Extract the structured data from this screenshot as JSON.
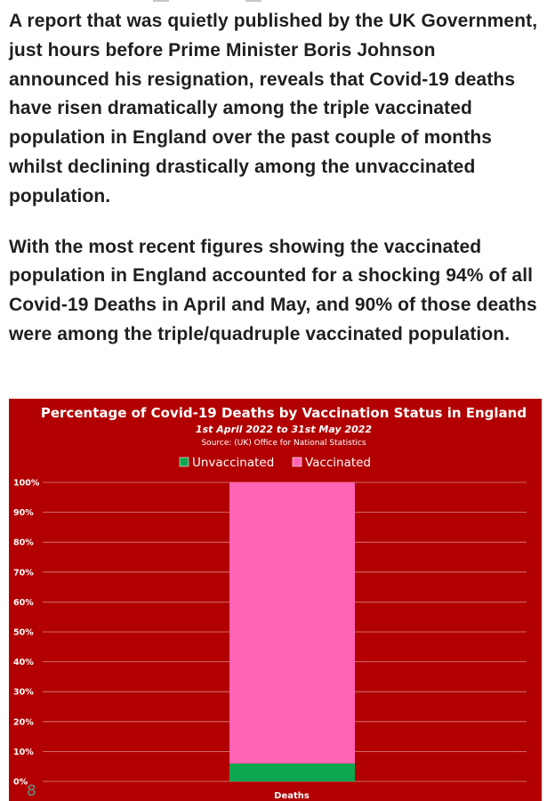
{
  "article": {
    "paragraphs": [
      "A report that was quietly published by the UK Government, just hours before Prime Minister Boris Johnson announced his resignation, reveals that Covid-19 deaths have risen dramatically among the triple vaccinated population in England over the past couple of months whilst declining drastically among the unvaccinated population.",
      "With the most recent figures showing the vaccinated population in England accounted for a shocking 94% of all Covid-19 Deaths in April and May, and 90% of those deaths were among the triple/quadruple vaccinated population."
    ]
  },
  "chart_data": {
    "type": "bar",
    "stacked": true,
    "title": "Percentage of Covid-19 Deaths by Vaccination Status in England",
    "subtitle": "1st April 2022 to 31st May 2022",
    "source": "Source: (UK) Office for National Statistics",
    "categories": [
      "Deaths"
    ],
    "series": [
      {
        "name": "Unvaccinated",
        "values": [
          6
        ],
        "color": "#0ea650"
      },
      {
        "name": "Vaccinated",
        "values": [
          94
        ],
        "color": "#ff64b4"
      }
    ],
    "ylim": [
      0,
      100
    ],
    "yticks": [
      "0%",
      "10%",
      "20%",
      "30%",
      "40%",
      "50%",
      "60%",
      "70%",
      "80%",
      "90%",
      "100%"
    ],
    "legend_position": "top-center",
    "grid": true,
    "background_color": "#b20000",
    "watermark": "8"
  }
}
